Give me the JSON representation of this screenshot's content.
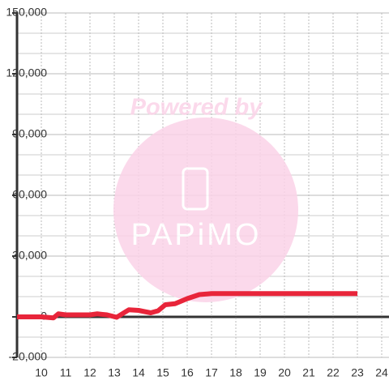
{
  "chart_data": {
    "type": "line",
    "x": [
      9,
      10,
      10.5,
      10.7,
      11,
      12,
      12.3,
      12.7,
      13.1,
      13.6,
      14,
      14.5,
      14.8,
      15.1,
      15.5,
      16,
      16.5,
      17,
      18,
      19,
      20,
      21,
      22,
      23
    ],
    "series": [
      {
        "color": "#e8253a",
        "values": [
          0,
          0,
          -500,
          1500,
          1000,
          1000,
          1500,
          1000,
          -200,
          3500,
          3200,
          2000,
          3000,
          6000,
          6500,
          9000,
          11000,
          11500,
          11500,
          11500,
          11500,
          11500,
          11500,
          11500
        ]
      }
    ],
    "xlim": [
      9,
      24.3
    ],
    "xticks": [
      10,
      11,
      12,
      13,
      14,
      15,
      16,
      17,
      18,
      19,
      20,
      21,
      22,
      23,
      24
    ],
    "ylim": [
      -20000,
      150000
    ],
    "yticks": [
      {
        "value": -20000,
        "label": "-20,000"
      },
      0,
      {
        "value": 30000,
        "label": "30,000"
      },
      {
        "value": 60000,
        "label": "60,000"
      },
      {
        "value": 90000,
        "label": "90,000"
      },
      {
        "value": 120000,
        "label": "120,000"
      },
      {
        "value": 150000,
        "label": "150,000"
      }
    ],
    "y_minor_ticks": [
      -10000,
      10000,
      20000,
      40000,
      50000,
      70000,
      80000,
      100000,
      110000,
      130000,
      140000
    ],
    "grid": true,
    "watermark": {
      "text": "Powered by",
      "logo": "PAPiMO"
    }
  }
}
